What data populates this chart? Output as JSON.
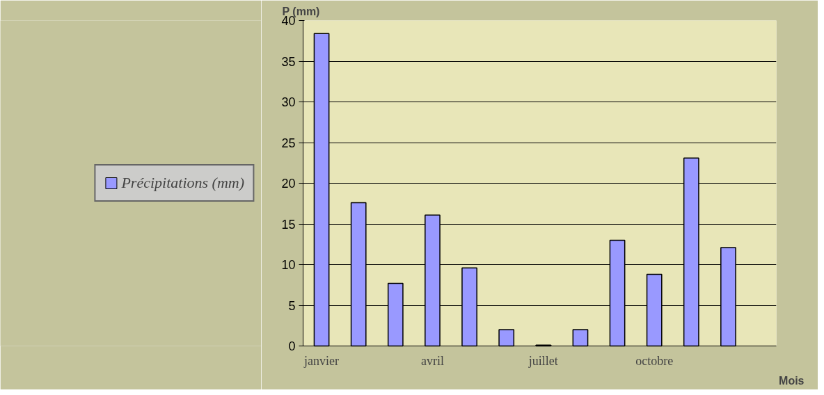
{
  "chart_data": {
    "type": "bar",
    "xlabel": "Mois",
    "ylabel": "P (mm)",
    "categories": [
      "janvier",
      null,
      null,
      "avril",
      null,
      null,
      "juillet",
      null,
      null,
      "octobre",
      null,
      null
    ],
    "series": [
      {
        "name": "Précipitations (mm)",
        "color": "#9999ff",
        "values": [
          38.4,
          17.6,
          7.7,
          16.1,
          9.6,
          2.0,
          0.1,
          2.0,
          13.0,
          8.8,
          23.1,
          12.1
        ]
      }
    ],
    "ylim": [
      0,
      40
    ],
    "yticks": [
      0,
      5,
      10,
      15,
      20,
      25,
      30,
      35,
      40
    ],
    "grid": "y",
    "legend": "left"
  }
}
